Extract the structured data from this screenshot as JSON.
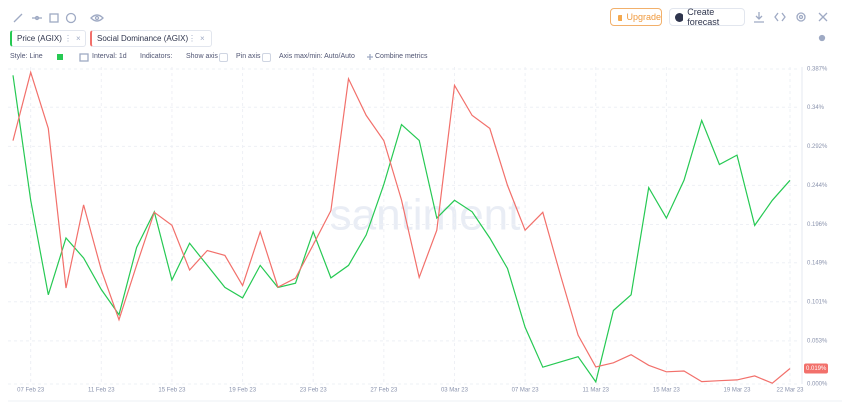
{
  "toolbar": {
    "upgrade": "Upgrade",
    "create_forecast": "Create forecast"
  },
  "settings": {
    "style": "Style: Line",
    "interval": "Interval: 1d",
    "indicators": "Indicators:",
    "show_axis": "Show axis",
    "pin_axis": "Pin axis",
    "axis_maxmin": "Axis max/min: Auto/Auto",
    "combine": "Combine metrics"
  },
  "watermark": "santiment",
  "chart_data": {
    "type": "line",
    "categories": [
      null,
      "07 Feb 23",
      null,
      null,
      null,
      "11 Feb 23",
      null,
      null,
      null,
      "15 Feb 23",
      null,
      null,
      null,
      "19 Feb 23",
      null,
      null,
      null,
      "23 Feb 23",
      null,
      null,
      null,
      "27 Feb 23",
      null,
      null,
      null,
      "03 Mar 23",
      null,
      null,
      null,
      "07 Mar 23",
      null,
      null,
      null,
      "11 Mar 23",
      null,
      null,
      null,
      "15 Mar 23",
      null,
      null,
      null,
      "19 Mar 23",
      null,
      null,
      "22 Mar 23"
    ],
    "series": [
      {
        "name": "Price (AGIX)",
        "color": "#26c953",
        "axis": "y2",
        "values": [
          0.594,
          0.475,
          0.385,
          0.439,
          0.42,
          0.39,
          0.366,
          0.43,
          0.464,
          0.399,
          0.434,
          0.413,
          0.392,
          0.382,
          0.413,
          0.392,
          0.396,
          0.445,
          0.401,
          0.413,
          0.442,
          0.49,
          0.547,
          0.532,
          0.458,
          0.475,
          0.464,
          0.439,
          0.41,
          0.354,
          0.316,
          0.321,
          0.326,
          0.302,
          0.37,
          0.385,
          0.487,
          0.458,
          0.494,
          0.551,
          0.509,
          0.518,
          0.451,
          0.475,
          0.494
        ]
      },
      {
        "name": "Social Dominance (AGIX)",
        "color": "#f2706b",
        "values": [
          0.299,
          0.383,
          0.314,
          0.118,
          0.22,
          0.14,
          0.079,
          0.146,
          0.211,
          0.195,
          0.14,
          0.164,
          0.158,
          0.121,
          0.187,
          0.119,
          0.13,
          0.171,
          0.213,
          0.375,
          0.33,
          0.299,
          0.226,
          0.131,
          0.189,
          0.367,
          0.33,
          0.314,
          0.244,
          0.189,
          0.211,
          0.134,
          0.06,
          0.021,
          0.026,
          0.036,
          0.023,
          0.015,
          0.016,
          0.003,
          0.004,
          0.005,
          0.01,
          0.001,
          0.019
        ],
        "value_labels": [
          null,
          null,
          null,
          null,
          null,
          null,
          null,
          null,
          null,
          null,
          null,
          null,
          null,
          null,
          null,
          null,
          null,
          null,
          null,
          null,
          null,
          null,
          null,
          null,
          null,
          null,
          null,
          null,
          null,
          null,
          null,
          null,
          null,
          null,
          null,
          null,
          null,
          null,
          null,
          null,
          null,
          null,
          null,
          null,
          "0.019%"
        ]
      }
    ],
    "ylim": [
      0,
      0.387
    ],
    "yticks": [
      {
        "value": 0,
        "label": "0.000%"
      },
      {
        "value": 0.053,
        "label": "0.053%"
      },
      {
        "value": 0.101,
        "label": "0.101%"
      },
      {
        "value": 0.149,
        "label": "0.149%"
      },
      {
        "value": 0.196,
        "label": "0.196%"
      },
      {
        "value": 0.244,
        "label": "0.244%"
      },
      {
        "value": 0.292,
        "label": "0.292%"
      },
      {
        "value": 0.34,
        "label": "0.34%"
      },
      {
        "value": 0.387,
        "label": "0.387%"
      }
    ],
    "y2lim": [
      0.3,
      0.6
    ],
    "grid": true
  }
}
